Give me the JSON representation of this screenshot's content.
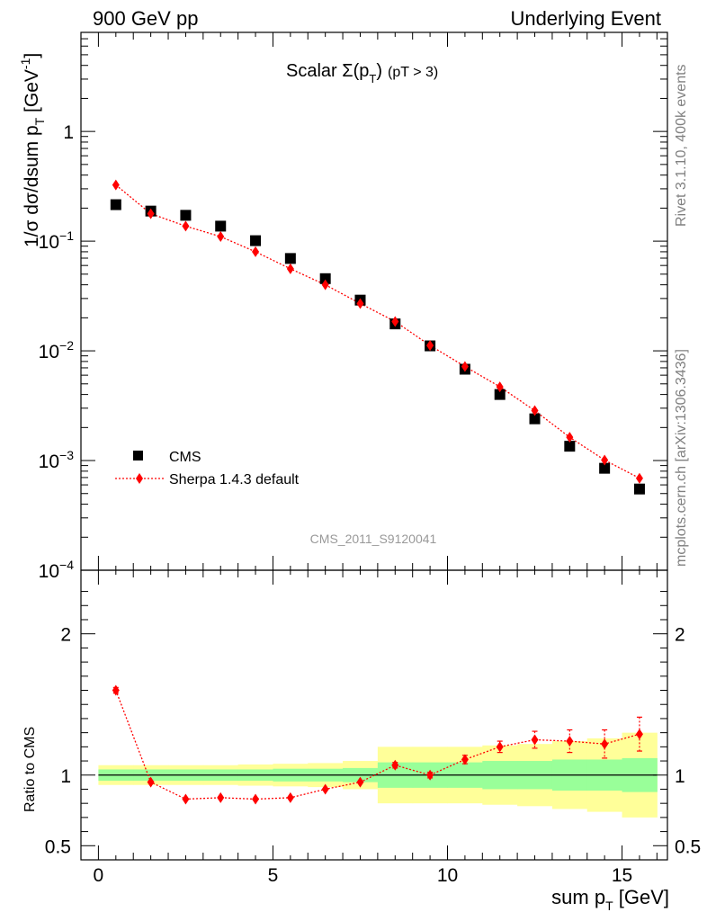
{
  "header": {
    "left": "900 GeV pp",
    "right": "Underlying Event"
  },
  "plot_title": {
    "main": "Scalar Σ(p",
    "sub": "T",
    "after": ")",
    "cut": "(pT >  3)"
  },
  "side_labels": {
    "rivet": "Rivet 3.1.10,  400k events",
    "mcplots": "mcplots.cern.ch [arXiv:1306.3436]"
  },
  "watermark": "CMS_2011_S9120041",
  "axes": {
    "ylabel_main": "1/σ dσ/dsum p",
    "ylabel_main_sub": "T",
    "ylabel_main_unit": " [GeV",
    "ylabel_main_sup": "-1",
    "ylabel_main_close": "]",
    "ylabel_ratio": "Ratio to CMS",
    "xlabel": "sum p",
    "xlabel_sub": "T",
    "xlabel_unit": " [GeV]"
  },
  "legend": {
    "cms": "CMS",
    "sherpa": "Sherpa 1.4.3 default"
  },
  "colors": {
    "cms": "#000000",
    "sherpa": "#ff0000",
    "band_inner": "#99ff99",
    "band_outer": "#ffff99",
    "side_text": "#808080"
  },
  "chart_data": {
    "type": "scatter",
    "xlim": [
      -0.5,
      16.3
    ],
    "ylim_main": [
      0.0001,
      8
    ],
    "yscale_main": "log",
    "ylim_ratio": [
      0.4,
      2.45
    ],
    "xticks": [
      {
        "v": 0,
        "label": "0"
      },
      {
        "v": 5,
        "label": "5"
      },
      {
        "v": 10,
        "label": "10"
      },
      {
        "v": 15,
        "label": "15"
      }
    ],
    "yticks_main": [
      {
        "v": 1,
        "label": "1"
      },
      {
        "v": 0.1,
        "label": "10",
        "exp": "−1"
      },
      {
        "v": 0.01,
        "label": "10",
        "exp": "−2"
      },
      {
        "v": 0.001,
        "label": "10",
        "exp": "−3"
      },
      {
        "v": 0.0001,
        "label": "10",
        "exp": "−4"
      }
    ],
    "yticks_ratio": [
      {
        "v": 0.5,
        "label": "0.5"
      },
      {
        "v": 1,
        "label": "1"
      },
      {
        "v": 2,
        "label": "2"
      }
    ],
    "x": [
      0.5,
      1.5,
      2.5,
      3.5,
      4.5,
      5.5,
      6.5,
      7.5,
      8.5,
      9.5,
      10.5,
      11.5,
      12.5,
      13.5,
      14.5,
      15.5
    ],
    "series": [
      {
        "name": "CMS",
        "values": [
          0.215,
          0.188,
          0.172,
          0.137,
          0.101,
          0.0695,
          0.0455,
          0.029,
          0.0176,
          0.0111,
          0.0068,
          0.004,
          0.0024,
          0.00135,
          0.00085,
          0.00055
        ]
      },
      {
        "name": "Sherpa 1.4.3 default",
        "values": [
          0.325,
          0.178,
          0.137,
          0.11,
          0.08,
          0.056,
          0.04,
          0.027,
          0.0185,
          0.0112,
          0.0072,
          0.0047,
          0.00285,
          0.00163,
          0.00101,
          0.00069
        ]
      }
    ],
    "ratio": {
      "values": [
        1.6,
        0.95,
        0.83,
        0.84,
        0.83,
        0.84,
        0.9,
        0.95,
        1.07,
        1.0,
        1.11,
        1.2,
        1.25,
        1.24,
        1.22,
        1.29
      ],
      "err": [
        0.02,
        0.01,
        0.01,
        0.01,
        0.01,
        0.01,
        0.01,
        0.01,
        0.02,
        0.02,
        0.03,
        0.04,
        0.06,
        0.08,
        0.1,
        0.12
      ],
      "band_inner": [
        0.04,
        0.04,
        0.04,
        0.04,
        0.04,
        0.045,
        0.045,
        0.05,
        0.09,
        0.09,
        0.09,
        0.1,
        0.1,
        0.11,
        0.11,
        0.12
      ],
      "band_outer": [
        0.07,
        0.07,
        0.07,
        0.07,
        0.075,
        0.08,
        0.085,
        0.1,
        0.2,
        0.2,
        0.2,
        0.21,
        0.22,
        0.24,
        0.26,
        0.3
      ]
    }
  }
}
